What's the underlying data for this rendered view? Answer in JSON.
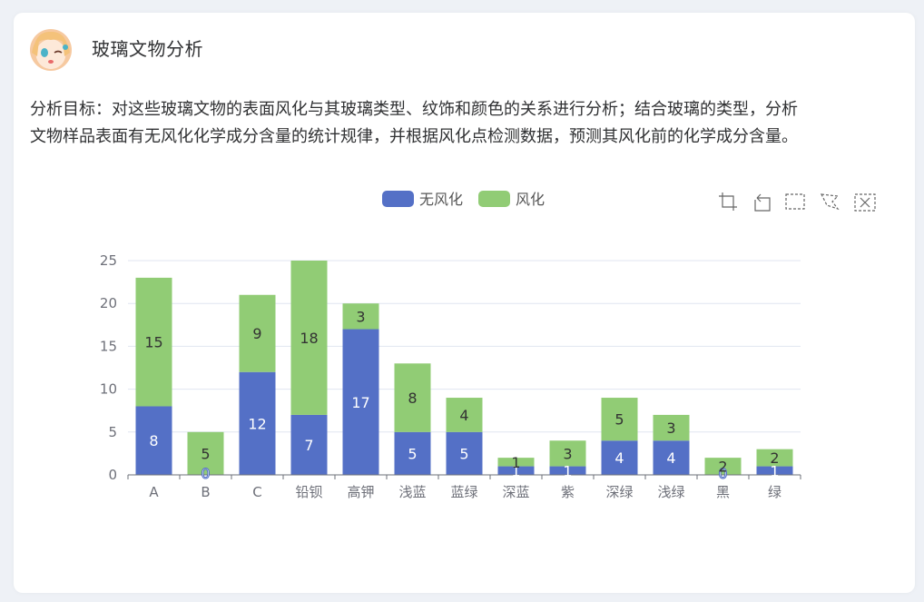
{
  "header": {
    "title": "玻璃文物分析"
  },
  "description": [
    "分析目标：对这些玻璃文物的表面风化与其玻璃类型、纹饰和颜色的关系进行分析；结合玻璃的类型，分析",
    "文物样品表面有无风化化学成分含量的统计规律，并根据风化点检测数据，预测其风化前的化学成分含量。"
  ],
  "toolbox": [
    "zoom-icon",
    "zoom-reset-icon",
    "rect-select-icon",
    "lasso-select-icon",
    "clear-select-icon"
  ],
  "chart_data": {
    "type": "bar",
    "stacked": true,
    "categories": [
      "A",
      "B",
      "C",
      "铅钡",
      "高钾",
      "浅蓝",
      "蓝绿",
      "深蓝",
      "紫",
      "深绿",
      "浅绿",
      "黑",
      "绿"
    ],
    "series": [
      {
        "name": "无风化",
        "color": "#5470c6",
        "values": [
          8,
          0,
          12,
          7,
          17,
          5,
          5,
          1,
          1,
          4,
          4,
          0,
          1
        ]
      },
      {
        "name": "风化",
        "color": "#91cc75",
        "values": [
          15,
          5,
          9,
          18,
          3,
          8,
          4,
          1,
          3,
          5,
          3,
          2,
          2
        ]
      }
    ],
    "ylim": [
      0,
      25
    ],
    "yticks": [
      0,
      5,
      10,
      15,
      20,
      25
    ],
    "legend_position": "top-center",
    "grid": true
  }
}
